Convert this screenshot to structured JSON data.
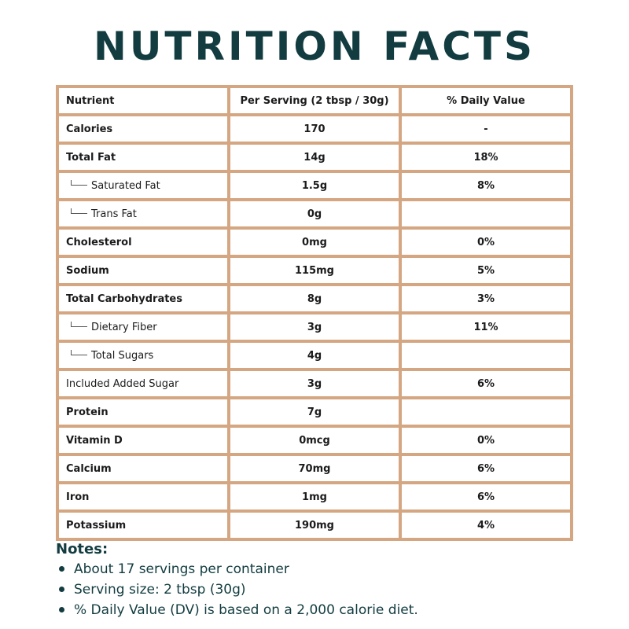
{
  "title": "NUTRITION FACTS",
  "table": {
    "headers": [
      "Nutrient",
      "Per Serving (2 tbsp / 30g)",
      "% Daily Value"
    ],
    "rows": [
      {
        "nutrient": "Calories",
        "amount": "170",
        "dv": "-",
        "sub": false,
        "bold": true
      },
      {
        "nutrient": "Total Fat",
        "amount": "14g",
        "dv": "18%",
        "sub": false,
        "bold": true
      },
      {
        "nutrient": "Saturated Fat",
        "amount": "1.5g",
        "dv": "8%",
        "sub": true,
        "bold": false
      },
      {
        "nutrient": "Trans Fat",
        "amount": "0g",
        "dv": "",
        "sub": true,
        "bold": false
      },
      {
        "nutrient": "Cholesterol",
        "amount": "0mg",
        "dv": "0%",
        "sub": false,
        "bold": true
      },
      {
        "nutrient": "Sodium",
        "amount": "115mg",
        "dv": "5%",
        "sub": false,
        "bold": true
      },
      {
        "nutrient": "Total Carbohydrates",
        "amount": "8g",
        "dv": "3%",
        "sub": false,
        "bold": true
      },
      {
        "nutrient": "Dietary Fiber",
        "amount": "3g",
        "dv": "11%",
        "sub": true,
        "bold": false
      },
      {
        "nutrient": "Total Sugars",
        "amount": "4g",
        "dv": "",
        "sub": true,
        "bold": false
      },
      {
        "nutrient": "Included Added Sugar",
        "amount": "3g",
        "dv": "6%",
        "sub": false,
        "bold": false
      },
      {
        "nutrient": "Protein",
        "amount": "7g",
        "dv": "",
        "sub": false,
        "bold": true
      },
      {
        "nutrient": "Vitamin D",
        "amount": "0mcg",
        "dv": "0%",
        "sub": false,
        "bold": true
      },
      {
        "nutrient": "Calcium",
        "amount": "70mg",
        "dv": "6%",
        "sub": false,
        "bold": true
      },
      {
        "nutrient": "Iron",
        "amount": "1mg",
        "dv": "6%",
        "sub": false,
        "bold": true
      },
      {
        "nutrient": "Potassium",
        "amount": "190mg",
        "dv": "4%",
        "sub": false,
        "bold": true
      }
    ]
  },
  "notes": {
    "title": "Notes:",
    "items": [
      "About 17 servings per container",
      "Serving size: 2 tbsp (30g)",
      "% Daily Value (DV) is based on a 2,000 calorie diet."
    ]
  },
  "colors": {
    "border": "#d4a782",
    "heading": "#123c40"
  }
}
